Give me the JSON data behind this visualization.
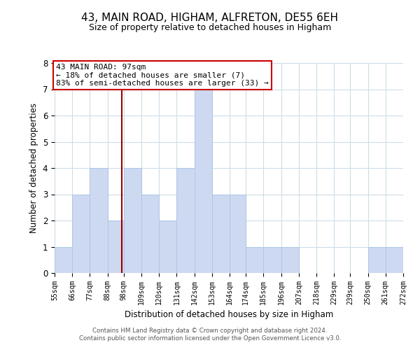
{
  "title": "43, MAIN ROAD, HIGHAM, ALFRETON, DE55 6EH",
  "subtitle": "Size of property relative to detached houses in Higham",
  "xlabel": "Distribution of detached houses by size in Higham",
  "ylabel": "Number of detached properties",
  "bin_edges": [
    55,
    66,
    77,
    88,
    98,
    109,
    120,
    131,
    142,
    153,
    164,
    174,
    185,
    196,
    207,
    218,
    229,
    239,
    250,
    261,
    272
  ],
  "bar_heights": [
    1,
    3,
    4,
    2,
    4,
    3,
    2,
    4,
    7,
    3,
    3,
    1,
    1,
    1,
    0,
    0,
    0,
    0,
    1,
    1
  ],
  "bar_color": "#ccd9f0",
  "bar_edgecolor": "#aec6e8",
  "property_size": 97,
  "vline_color": "#990000",
  "annotation_line1": "43 MAIN ROAD: 97sqm",
  "annotation_line2": "← 18% of detached houses are smaller (7)",
  "annotation_line3": "83% of semi-detached houses are larger (33) →",
  "annotation_box_color": "#cc0000",
  "ylim": [
    0,
    8
  ],
  "yticks": [
    0,
    1,
    2,
    3,
    4,
    5,
    6,
    7,
    8
  ],
  "background_color": "#ffffff",
  "grid_color": "#ccdde8",
  "footer_line1": "Contains HM Land Registry data © Crown copyright and database right 2024.",
  "footer_line2": "Contains public sector information licensed under the Open Government Licence v3.0."
}
